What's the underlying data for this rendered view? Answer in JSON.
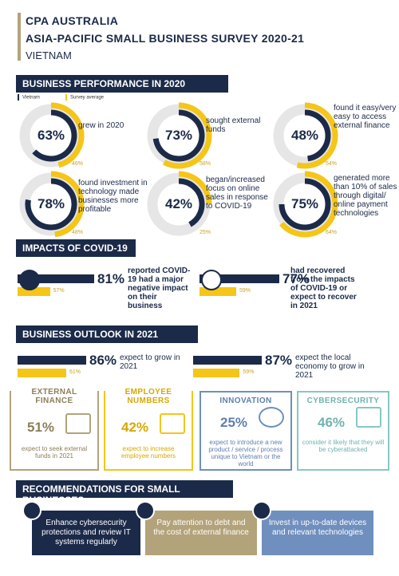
{
  "header": {
    "line1": "CPA AUSTRALIA",
    "line2": "ASIA-PACIFIC SMALL BUSINESS SURVEY 2020-21",
    "line3": "VIETNAM"
  },
  "colors": {
    "navy": "#1b2a48",
    "gold": "#f5c518",
    "tan": "#b3a37a",
    "blue": "#6f8fbe",
    "teal": "#86c7c4",
    "grey": "#e6e6e6"
  },
  "section1": {
    "title": "BUSINESS PERFORMANCE IN 2020",
    "legend_vietnam": "Vietnam",
    "legend_avg": "Survey average"
  },
  "section2": {
    "title": "IMPACTS OF COVID-19"
  },
  "section3": {
    "title": "BUSINESS OUTLOOK IN 2021"
  },
  "section4": {
    "title": "RECOMMENDATIONS FOR SMALL BUSINESSES"
  },
  "chart_data": [
    {
      "type": "donut",
      "series": [
        {
          "name": "Vietnam",
          "values": [
            63,
            73,
            48,
            78,
            42,
            75
          ]
        },
        {
          "name": "Survey average",
          "values": [
            46,
            58,
            54,
            48,
            25,
            64
          ]
        }
      ],
      "items": [
        {
          "value": "63%",
          "avg": "46%",
          "label": "grew in 2020"
        },
        {
          "value": "73%",
          "avg": "58%",
          "label": "sought external funds"
        },
        {
          "value": "48%",
          "avg": "54%",
          "label": "found it easy/very easy to access external finance"
        },
        {
          "value": "78%",
          "avg": "48%",
          "label": "found investment in technology made businesses more profitable"
        },
        {
          "value": "42%",
          "avg": "25%",
          "label": "began/increased focus on online sales in response to COVID-19"
        },
        {
          "value": "75%",
          "avg": "64%",
          "label": "generated more than 10% of sales through digital/ online payment technologies"
        }
      ]
    },
    {
      "type": "bar",
      "series": [
        {
          "name": "Vietnam",
          "values": [
            81,
            77
          ]
        },
        {
          "name": "Survey average",
          "values": [
            57,
            59
          ]
        }
      ],
      "items": [
        {
          "value": "81%",
          "avg": "57%",
          "label": "reported COVID-19 had a major negative impact on their business"
        },
        {
          "value": "77%",
          "avg": "59%",
          "label": "had recovered from the impacts of COVID-19 or expect to recover in 2021"
        }
      ]
    },
    {
      "type": "bar",
      "series": [
        {
          "name": "Vietnam",
          "values": [
            86,
            87
          ]
        },
        {
          "name": "Survey average",
          "values": [
            61,
            59
          ]
        }
      ],
      "items": [
        {
          "value": "86%",
          "avg": "61%",
          "label": "expect to grow in 2021"
        },
        {
          "value": "87%",
          "avg": "59%",
          "label": "expect the local economy to grow in 2021"
        }
      ]
    }
  ],
  "cards": [
    {
      "title": "EXTERNAL FINANCE",
      "value": "51%",
      "text": "expect to seek external funds in 2021",
      "icon": "coins-icon"
    },
    {
      "title": "EMPLOYEE NUMBERS",
      "value": "42%",
      "text": "expect to increase employee numbers",
      "icon": "people-icon"
    },
    {
      "title": "INNOVATION",
      "value": "25%",
      "text": "expect to introduce a new product / service / process unique to Vietnam or the world",
      "icon": "lightbulb-gear-icon"
    },
    {
      "title": "CYBERSECURITY",
      "value": "46%",
      "text": "consider it likely that they will be cyberattacked",
      "icon": "laptop-alert-icon"
    }
  ],
  "recommendations": [
    {
      "text": "Enhance cybersecurity protections and review IT systems regularly",
      "icon": "shield-laptop-icon"
    },
    {
      "text": "Pay attention to debt and the cost of external finance",
      "icon": "wallet-icon"
    },
    {
      "text": "Invest in up-to-date devices and relevant technologies",
      "icon": "devices-icon"
    }
  ]
}
